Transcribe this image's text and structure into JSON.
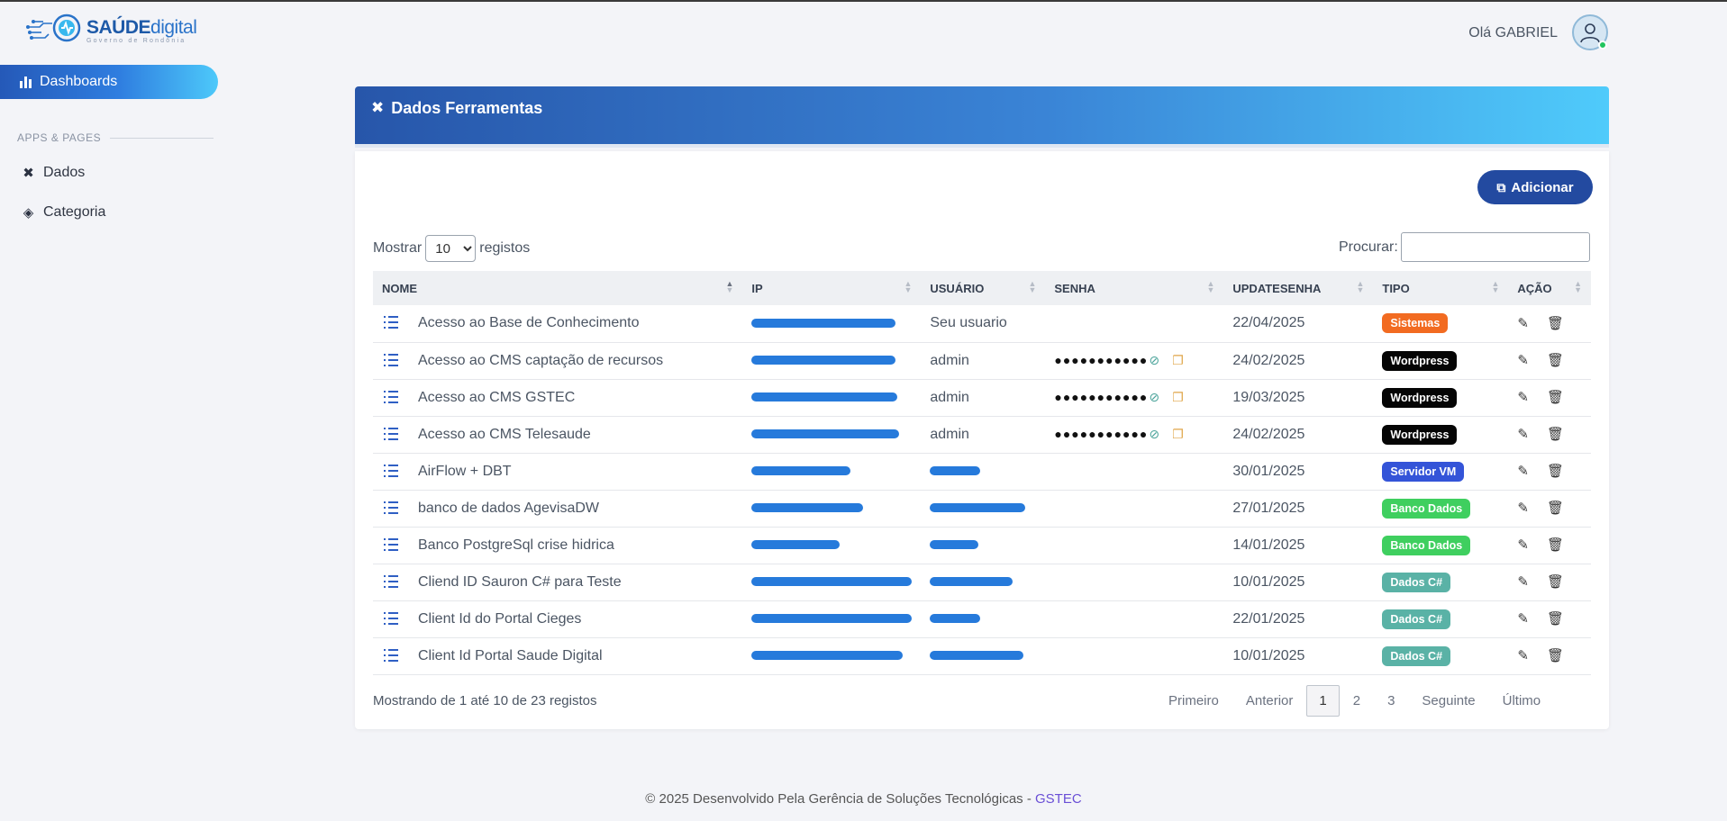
{
  "brand": {
    "title_bold": "SAÚDE",
    "title_light": "digital",
    "subtitle": "Governo de Rondônia"
  },
  "sidebar": {
    "active": {
      "label": "Dashboards",
      "icon": "bar-chart-icon"
    },
    "section": "APPS & PAGES",
    "items": [
      {
        "label": "Dados",
        "icon": "tools-icon"
      },
      {
        "label": "Categoria",
        "icon": "layers-icon"
      }
    ]
  },
  "header": {
    "greeting": "Olá GABRIEL"
  },
  "card": {
    "title": "Dados Ferramentas",
    "add_label": "Adicionar"
  },
  "controls": {
    "show_label": "Mostrar",
    "length_value": "10",
    "records_label": "registos",
    "search_label": "Procurar:",
    "search_value": ""
  },
  "table": {
    "columns": [
      "NOME",
      "IP",
      "USUÁRIO",
      "SENHA",
      "UPDATESENHA",
      "TIPO",
      "AÇÃO"
    ],
    "rows": [
      {
        "nome": "Acesso ao Base de Conhecimento",
        "usuario": "Seu usuario",
        "senha": "",
        "update": "22/04/2025",
        "tipo": "Sistemas",
        "ip_w": 160,
        "user_w": 0
      },
      {
        "nome": "Acesso ao CMS captação de recursos",
        "usuario": "admin",
        "senha": "●●●●●●●●●●●",
        "update": "24/02/2025",
        "tipo": "Wordpress",
        "ip_w": 160,
        "user_w": 0
      },
      {
        "nome": "Acesso ao CMS GSTEC",
        "usuario": "admin",
        "senha": "●●●●●●●●●●●",
        "update": "19/03/2025",
        "tipo": "Wordpress",
        "ip_w": 162,
        "user_w": 0
      },
      {
        "nome": "Acesso ao CMS Telesaude",
        "usuario": "admin",
        "senha": "●●●●●●●●●●●",
        "update": "24/02/2025",
        "tipo": "Wordpress",
        "ip_w": 164,
        "user_w": 0
      },
      {
        "nome": "AirFlow + DBT",
        "usuario": "",
        "senha": "",
        "update": "30/01/2025",
        "tipo": "Servidor VM",
        "ip_w": 110,
        "user_w": 56
      },
      {
        "nome": "banco de dados AgevisaDW",
        "usuario": "",
        "senha": "",
        "update": "27/01/2025",
        "tipo": "Banco Dados",
        "ip_w": 124,
        "user_w": 106
      },
      {
        "nome": "Banco PostgreSql crise hidrica",
        "usuario": "",
        "senha": "",
        "update": "14/01/2025",
        "tipo": "Banco Dados",
        "ip_w": 98,
        "user_w": 54
      },
      {
        "nome": "Cliend ID Sauron C# para Teste",
        "usuario": "",
        "senha": "",
        "update": "10/01/2025",
        "tipo": "Dados C#",
        "ip_w": 178,
        "user_w": 92
      },
      {
        "nome": "Client Id do Portal Cieges",
        "usuario": "",
        "senha": "",
        "update": "22/01/2025",
        "tipo": "Dados C#",
        "ip_w": 178,
        "user_w": 56
      },
      {
        "nome": "Client Id Portal Saude Digital",
        "usuario": "",
        "senha": "",
        "update": "10/01/2025",
        "tipo": "Dados C#",
        "ip_w": 168,
        "user_w": 104
      }
    ]
  },
  "badge_colors": {
    "Sistemas": "#f26b21",
    "Wordpress": "#050505",
    "Servidor VM": "#3454d8",
    "Banco Dados": "#3fcf5f",
    "Dados C#": "#5ab2a6"
  },
  "footer": {
    "info": "Mostrando de 1 até 10 de 23 registos",
    "copyright": "© 2025 Desenvolvido Pela Gerência de Soluções Tecnológicas - ",
    "link": "GSTEC"
  },
  "pagination": {
    "first": "Primeiro",
    "prev": "Anterior",
    "pages": [
      "1",
      "2",
      "3"
    ],
    "current": "1",
    "next": "Seguinte",
    "last": "Último"
  }
}
